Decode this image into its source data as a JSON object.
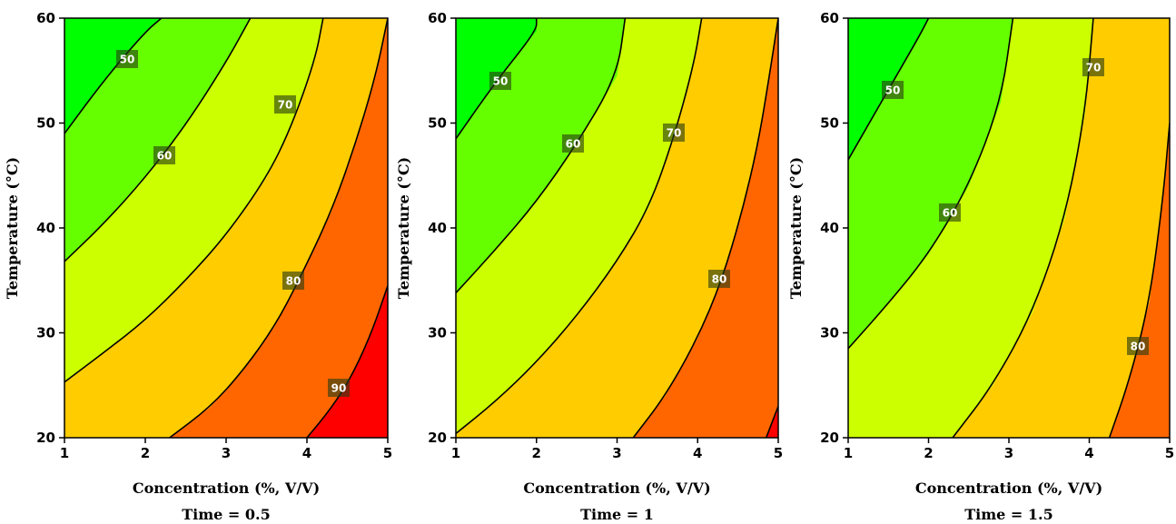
{
  "chart_data": [
    {
      "type": "contour",
      "x_label": "Concentration (%, V/V)",
      "y_label": "Temperature (°C)",
      "caption": "Time = 0.5",
      "x_ticks": [
        "1",
        "2",
        "3",
        "4",
        "5"
      ],
      "y_ticks": [
        "20",
        "30",
        "40",
        "50",
        "60"
      ],
      "xlim": [
        1,
        5
      ],
      "ylim": [
        20,
        60
      ],
      "levels": [
        50,
        60,
        70,
        80,
        90
      ],
      "contour_labels": [
        "50",
        "60",
        "70",
        "80",
        "90"
      ],
      "contours": [
        {
          "level": 50,
          "points": [
            [
              1.0,
              49.0
            ],
            [
              1.5,
              54.2
            ],
            [
              2.0,
              58.7
            ],
            [
              2.2,
              60.0
            ]
          ]
        },
        {
          "level": 60,
          "points": [
            [
              1.0,
              36.8
            ],
            [
              1.5,
              40.5
            ],
            [
              2.0,
              44.8
            ],
            [
              2.5,
              49.8
            ],
            [
              3.0,
              55.8
            ],
            [
              3.3,
              60.0
            ]
          ]
        },
        {
          "level": 70,
          "points": [
            [
              1.0,
              25.3
            ],
            [
              1.5,
              28.2
            ],
            [
              2.0,
              31.2
            ],
            [
              2.5,
              35.0
            ],
            [
              3.0,
              39.3
            ],
            [
              3.5,
              44.8
            ],
            [
              3.8,
              49.5
            ],
            [
              4.1,
              56.0
            ],
            [
              4.2,
              60.0
            ]
          ]
        },
        {
          "level": 80,
          "points": [
            [
              2.3,
              20.0
            ],
            [
              2.8,
              22.9
            ],
            [
              3.2,
              26.3
            ],
            [
              3.6,
              30.6
            ],
            [
              3.9,
              35.0
            ],
            [
              4.3,
              41.5
            ],
            [
              4.6,
              48.0
            ],
            [
              4.85,
              54.5
            ],
            [
              5.0,
              60.0
            ]
          ]
        },
        {
          "level": 90,
          "points": [
            [
              4.0,
              20.0
            ],
            [
              4.3,
              22.8
            ],
            [
              4.55,
              25.8
            ],
            [
              4.8,
              30.0
            ],
            [
              5.0,
              34.5
            ]
          ]
        }
      ],
      "band_colors": [
        "#00ff00",
        "#66ff00",
        "#ccff00",
        "#ffcc00",
        "#ff6600",
        "#ff0000"
      ]
    },
    {
      "type": "contour",
      "x_label": "Concentration (%, V/V)",
      "y_label": "Temperature (°C)",
      "caption": "Time = 1",
      "x_ticks": [
        "1",
        "2",
        "3",
        "4",
        "5"
      ],
      "y_ticks": [
        "20",
        "30",
        "40",
        "50",
        "60"
      ],
      "xlim": [
        1,
        5
      ],
      "ylim": [
        20,
        60
      ],
      "levels": [
        50,
        60,
        70,
        80,
        90
      ],
      "contour_labels": [
        "50",
        "60",
        "70",
        "80"
      ],
      "contours": [
        {
          "level": 50,
          "points": [
            [
              1.0,
              48.5
            ],
            [
              1.5,
              54.0
            ],
            [
              2.0,
              58.8
            ],
            [
              2.0,
              60.0
            ]
          ]
        },
        {
          "level": 60,
          "points": [
            [
              1.0,
              33.8
            ],
            [
              1.5,
              38.0
            ],
            [
              2.0,
              42.5
            ],
            [
              2.5,
              48.0
            ],
            [
              3.0,
              54.5
            ],
            [
              3.1,
              60.0
            ]
          ]
        },
        {
          "level": 70,
          "points": [
            [
              1.0,
              20.4
            ],
            [
              1.5,
              23.5
            ],
            [
              2.0,
              27.2
            ],
            [
              2.5,
              31.6
            ],
            [
              3.0,
              36.8
            ],
            [
              3.4,
              42.0
            ],
            [
              3.7,
              48.5
            ],
            [
              3.95,
              55.5
            ],
            [
              4.05,
              60.0
            ]
          ]
        },
        {
          "level": 80,
          "points": [
            [
              3.2,
              20.0
            ],
            [
              3.6,
              24.0
            ],
            [
              4.0,
              29.5
            ],
            [
              4.3,
              35.0
            ],
            [
              4.55,
              41.5
            ],
            [
              4.75,
              48.0
            ],
            [
              4.9,
              55.0
            ],
            [
              5.0,
              60.0
            ]
          ]
        },
        {
          "level": 90,
          "points": [
            [
              4.85,
              20.0
            ],
            [
              5.0,
              23.0
            ]
          ]
        }
      ],
      "band_colors": [
        "#00ff00",
        "#66ff00",
        "#ccff00",
        "#ffcc00",
        "#ff6600",
        "#ff0000"
      ]
    },
    {
      "type": "contour",
      "x_label": "Concentration (%, V/V)",
      "y_label": "Temperature (°C)",
      "caption": "Time = 1.5",
      "x_ticks": [
        "1",
        "2",
        "3",
        "4",
        "5"
      ],
      "y_ticks": [
        "20",
        "30",
        "40",
        "50",
        "60"
      ],
      "xlim": [
        1,
        5
      ],
      "ylim": [
        20,
        60
      ],
      "levels": [
        50,
        60,
        70,
        80
      ],
      "contour_labels": [
        "50",
        "60",
        "70",
        "80"
      ],
      "contours": [
        {
          "level": 50,
          "points": [
            [
              1.0,
              46.5
            ],
            [
              1.3,
              50.5
            ],
            [
              1.6,
              54.5
            ],
            [
              1.9,
              58.5
            ],
            [
              2.0,
              60.0
            ]
          ]
        },
        {
          "level": 60,
          "points": [
            [
              1.0,
              28.5
            ],
            [
              1.5,
              32.8
            ],
            [
              2.0,
              37.5
            ],
            [
              2.5,
              44.0
            ],
            [
              2.9,
              52.0
            ],
            [
              3.05,
              60.0
            ]
          ]
        },
        {
          "level": 70,
          "points": [
            [
              2.3,
              20.0
            ],
            [
              2.8,
              25.0
            ],
            [
              3.3,
              32.0
            ],
            [
              3.7,
              41.0
            ],
            [
              3.95,
              51.0
            ],
            [
              4.05,
              60.0
            ]
          ]
        },
        {
          "level": 80,
          "points": [
            [
              4.25,
              20.0
            ],
            [
              4.5,
              25.5
            ],
            [
              4.75,
              33.0
            ],
            [
              4.92,
              43.0
            ],
            [
              5.0,
              50.0
            ]
          ]
        }
      ],
      "band_colors": [
        "#00ff00",
        "#66ff00",
        "#ccff00",
        "#ffcc00",
        "#ff6600"
      ]
    }
  ]
}
